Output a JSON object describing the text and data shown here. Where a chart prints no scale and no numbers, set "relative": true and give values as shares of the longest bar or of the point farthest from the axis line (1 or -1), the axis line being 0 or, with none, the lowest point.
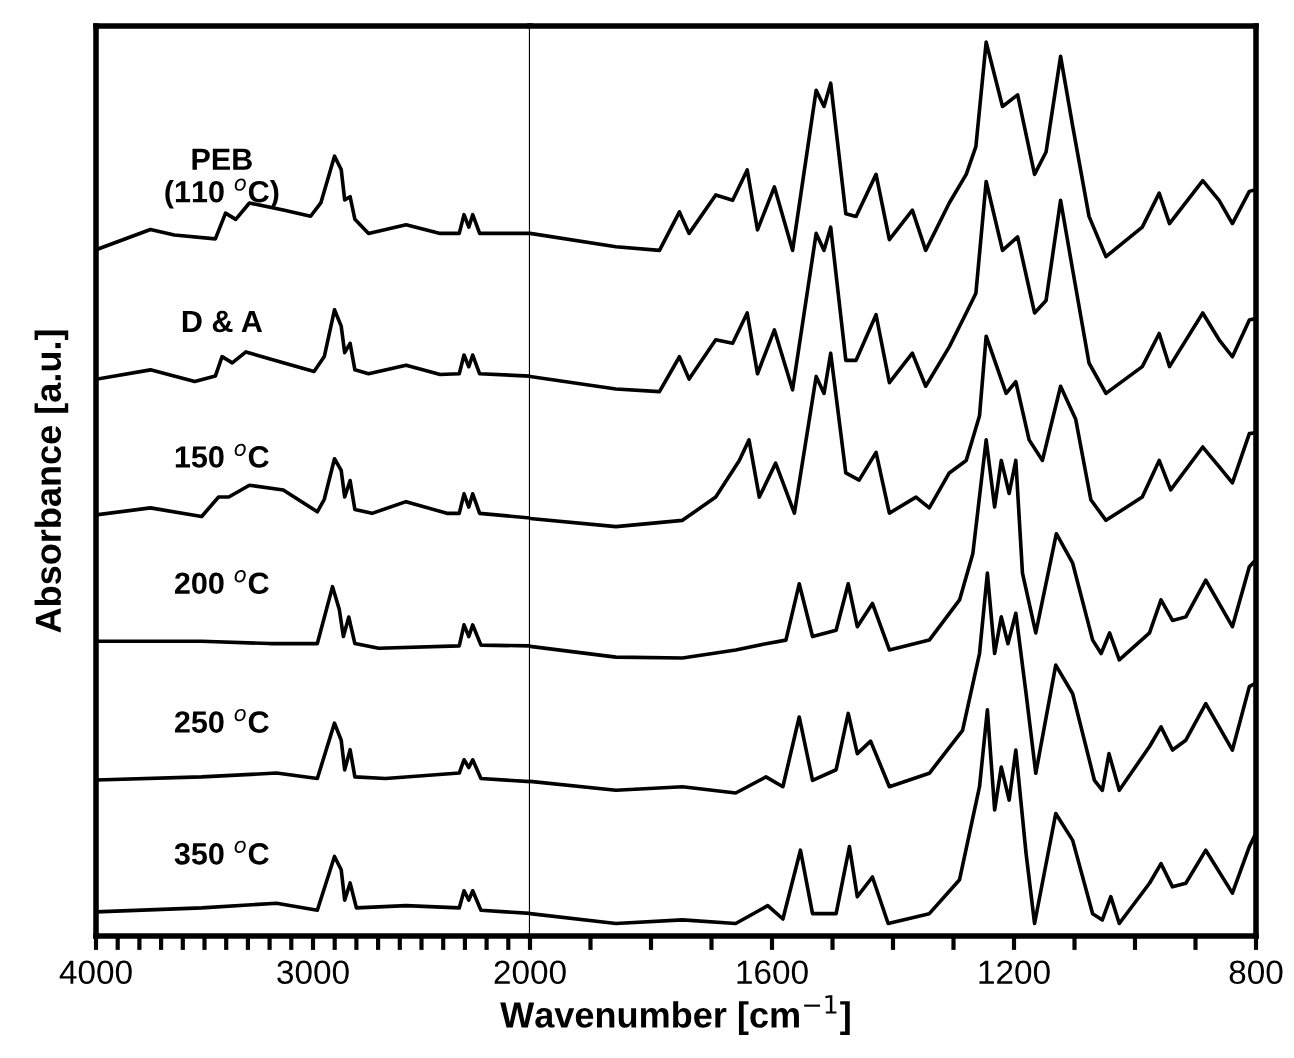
{
  "chart_data": [
    {
      "type": "line",
      "relative": true,
      "ylabel": "Absorbance [a.u.]",
      "xlim": [
        4000,
        2000
      ],
      "xticks": [
        4000,
        {
          "value": 3900,
          "label": null
        },
        {
          "value": 3800,
          "label": null
        },
        {
          "value": 3700,
          "label": null
        },
        {
          "value": 3600,
          "label": null
        },
        {
          "value": 3500,
          "label": null
        },
        {
          "value": 3400,
          "label": null
        },
        {
          "value": 3300,
          "label": null
        },
        {
          "value": 3200,
          "label": null
        },
        {
          "value": 3100,
          "label": null
        },
        3000,
        {
          "value": 2900,
          "label": null
        },
        {
          "value": 2800,
          "label": null
        },
        {
          "value": 2700,
          "label": null
        },
        {
          "value": 2600,
          "label": null
        },
        {
          "value": 2500,
          "label": null
        },
        {
          "value": 2400,
          "label": null
        },
        {
          "value": 2300,
          "label": null
        },
        {
          "value": 2200,
          "label": null
        },
        {
          "value": 2100,
          "label": null
        },
        2000
      ],
      "tick_labels": "x",
      "grid": false,
      "legend": false,
      "marker": "none",
      "line_style": "solid",
      "series": [
        {
          "name": "PEB\n(110 $^{o}$C)",
          "color": "#000000",
          "x": [
            4000,
            3749,
            3639,
            3450,
            3403,
            3356,
            3293,
            3137,
            3011,
            2964,
            2901,
            2870,
            2854,
            2829,
            2807,
            2744,
            2571,
            2414,
            2326,
            2304,
            2282,
            2264,
            2232,
            2000
          ],
          "values": [
            0.88,
            0.906,
            0.899,
            0.894,
            0.927,
            0.919,
            0.94,
            0.931,
            0.923,
            0.94,
            1.0,
            0.983,
            0.944,
            0.948,
            0.919,
            0.901,
            0.912,
            0.901,
            0.901,
            0.925,
            0.909,
            0.925,
            0.901,
            0.901
          ]
        },
        {
          "name": "D & A",
          "color": "#000000",
          "x": [
            4000,
            3749,
            3545,
            3450,
            3419,
            3372,
            3309,
            3137,
            2995,
            2948,
            2901,
            2870,
            2854,
            2829,
            2807,
            2744,
            2571,
            2414,
            2326,
            2304,
            2282,
            2264,
            2232,
            2000
          ],
          "values": [
            0.714,
            0.726,
            0.711,
            0.718,
            0.743,
            0.735,
            0.749,
            0.735,
            0.724,
            0.743,
            0.803,
            0.782,
            0.748,
            0.76,
            0.726,
            0.721,
            0.732,
            0.72,
            0.721,
            0.745,
            0.73,
            0.745,
            0.721,
            0.718
          ]
        },
        {
          "name": "150 $^{o}$C",
          "color": "#000000",
          "x": [
            4000,
            3749,
            3513,
            3435,
            3388,
            3293,
            3137,
            2980,
            2948,
            2901,
            2870,
            2854,
            2829,
            2807,
            2728,
            2571,
            2383,
            2326,
            2304,
            2282,
            2264,
            2232,
            2000
          ],
          "values": [
            0.54,
            0.549,
            0.538,
            0.563,
            0.563,
            0.578,
            0.572,
            0.544,
            0.56,
            0.612,
            0.597,
            0.563,
            0.584,
            0.547,
            0.542,
            0.557,
            0.542,
            0.542,
            0.567,
            0.55,
            0.567,
            0.542,
            0.536
          ]
        },
        {
          "name": "200 $^{o}$C",
          "color": "#000000",
          "x": [
            4000,
            3513,
            3200,
            2980,
            2910,
            2879,
            2860,
            2835,
            2807,
            2697,
            2326,
            2304,
            2282,
            2264,
            2226,
            2000
          ],
          "values": [
            0.378,
            0.378,
            0.375,
            0.375,
            0.448,
            0.419,
            0.384,
            0.409,
            0.375,
            0.369,
            0.372,
            0.399,
            0.384,
            0.399,
            0.373,
            0.372
          ]
        },
        {
          "name": "250 $^{o}$C",
          "color": "#000000",
          "x": [
            4000,
            3513,
            3168,
            2980,
            2901,
            2870,
            2854,
            2829,
            2807,
            2666,
            2326,
            2304,
            2282,
            2264,
            2226,
            2000
          ],
          "values": [
            0.2,
            0.204,
            0.209,
            0.202,
            0.273,
            0.251,
            0.213,
            0.239,
            0.204,
            0.202,
            0.209,
            0.226,
            0.216,
            0.226,
            0.202,
            0.198
          ]
        },
        {
          "name": "350 $^{o}$C",
          "color": "#000000",
          "x": [
            4000,
            3513,
            3168,
            2980,
            2901,
            2870,
            2854,
            2829,
            2800,
            2571,
            2326,
            2304,
            2282,
            2264,
            2226,
            2000
          ],
          "values": [
            0.031,
            0.036,
            0.042,
            0.033,
            0.102,
            0.085,
            0.046,
            0.068,
            0.036,
            0.039,
            0.036,
            0.058,
            0.046,
            0.058,
            0.033,
            0.029
          ]
        }
      ]
    },
    {
      "type": "line",
      "relative": true,
      "xlabel": "Wavenumber [cm$^{−1}$]",
      "xlim": [
        2000,
        800
      ],
      "xticks": [
        {
          "value": 1900,
          "label": null
        },
        {
          "value": 1800,
          "label": null
        },
        {
          "value": 1700,
          "label": null
        },
        1600,
        {
          "value": 1500,
          "label": null
        },
        {
          "value": 1400,
          "label": null
        },
        {
          "value": 1300,
          "label": null
        },
        1200,
        {
          "value": 1100,
          "label": null
        },
        {
          "value": 1000,
          "label": null
        },
        {
          "value": 900,
          "label": null
        },
        800
      ],
      "tick_labels": "x",
      "grid": false,
      "legend": false,
      "marker": "none",
      "line_style": "solid",
      "series": [
        {
          "color": "#000000",
          "x": [
            2000,
            1858,
            1786,
            1753,
            1737,
            1693,
            1665,
            1641,
            1624,
            1596,
            1566,
            1527,
            1514,
            1503,
            1478,
            1461,
            1428,
            1406,
            1368,
            1346,
            1307,
            1279,
            1263,
            1246,
            1219,
            1194,
            1166,
            1147,
            1123,
            1103,
            1076,
            1048,
            988,
            960,
            943,
            888,
            861,
            839,
            811,
            800
          ],
          "values": [
            0.786,
            0.771,
            0.767,
            0.81,
            0.786,
            0.829,
            0.823,
            0.857,
            0.79,
            0.838,
            0.767,
            0.946,
            0.928,
            0.954,
            0.808,
            0.805,
            0.852,
            0.779,
            0.812,
            0.767,
            0.82,
            0.852,
            0.883,
            1.0,
            0.928,
            0.941,
            0.852,
            0.877,
            0.984,
            0.906,
            0.805,
            0.76,
            0.793,
            0.831,
            0.797,
            0.845,
            0.823,
            0.797,
            0.833,
            0.835
          ]
        },
        {
          "color": "#000000",
          "x": [
            2000,
            1858,
            1786,
            1753,
            1737,
            1693,
            1665,
            1641,
            1624,
            1596,
            1566,
            1527,
            1514,
            1503,
            1478,
            1461,
            1428,
            1406,
            1368,
            1346,
            1307,
            1279,
            1263,
            1246,
            1219,
            1194,
            1166,
            1147,
            1123,
            1103,
            1076,
            1048,
            988,
            960,
            943,
            888,
            861,
            839,
            811,
            800
          ],
          "values": [
            0.626,
            0.612,
            0.609,
            0.648,
            0.623,
            0.667,
            0.663,
            0.697,
            0.629,
            0.678,
            0.611,
            0.786,
            0.767,
            0.793,
            0.644,
            0.644,
            0.695,
            0.619,
            0.652,
            0.615,
            0.659,
            0.697,
            0.719,
            0.844,
            0.767,
            0.782,
            0.697,
            0.711,
            0.823,
            0.745,
            0.641,
            0.607,
            0.637,
            0.674,
            0.637,
            0.697,
            0.667,
            0.648,
            0.689,
            0.691
          ]
        },
        {
          "color": "#000000",
          "x": [
            2000,
            1858,
            1748,
            1693,
            1654,
            1638,
            1621,
            1594,
            1563,
            1527,
            1514,
            1503,
            1478,
            1456,
            1428,
            1406,
            1362,
            1340,
            1307,
            1279,
            1257,
            1246,
            1213,
            1197,
            1175,
            1153,
            1123,
            1098,
            1073,
            1048,
            988,
            960,
            941,
            888,
            861,
            839,
            811,
            800
          ],
          "values": [
            0.467,
            0.458,
            0.465,
            0.491,
            0.532,
            0.555,
            0.491,
            0.529,
            0.473,
            0.626,
            0.607,
            0.652,
            0.518,
            0.51,
            0.541,
            0.473,
            0.491,
            0.479,
            0.518,
            0.532,
            0.582,
            0.671,
            0.607,
            0.62,
            0.555,
            0.532,
            0.615,
            0.578,
            0.488,
            0.465,
            0.491,
            0.532,
            0.499,
            0.547,
            0.525,
            0.507,
            0.562,
            0.563
          ]
        },
        {
          "color": "#000000",
          "x": [
            2000,
            1858,
            1748,
            1660,
            1610,
            1577,
            1555,
            1533,
            1494,
            1474,
            1459,
            1434,
            1406,
            1340,
            1290,
            1268,
            1246,
            1232,
            1221,
            1208,
            1197,
            1186,
            1164,
            1130,
            1103,
            1070,
            1056,
            1042,
            1026,
            976,
            957,
            938,
            916,
            883,
            839,
            811,
            800
          ],
          "values": [
            0.324,
            0.312,
            0.311,
            0.32,
            0.327,
            0.331,
            0.394,
            0.335,
            0.342,
            0.394,
            0.346,
            0.372,
            0.32,
            0.331,
            0.376,
            0.428,
            0.555,
            0.48,
            0.532,
            0.495,
            0.532,
            0.406,
            0.339,
            0.45,
            0.417,
            0.331,
            0.316,
            0.339,
            0.309,
            0.339,
            0.376,
            0.353,
            0.357,
            0.398,
            0.346,
            0.413,
            0.421
          ]
        },
        {
          "color": "#000000",
          "x": [
            2000,
            1858,
            1748,
            1660,
            1610,
            1582,
            1555,
            1533,
            1494,
            1474,
            1459,
            1437,
            1406,
            1340,
            1285,
            1257,
            1244,
            1232,
            1221,
            1210,
            1197,
            1180,
            1164,
            1131,
            1103,
            1067,
            1054,
            1043,
            1026,
            976,
            957,
            938,
            916,
            883,
            839,
            811,
            800
          ],
          "values": [
            0.173,
            0.163,
            0.167,
            0.16,
            0.178,
            0.167,
            0.245,
            0.174,
            0.186,
            0.249,
            0.204,
            0.218,
            0.167,
            0.182,
            0.23,
            0.316,
            0.406,
            0.316,
            0.357,
            0.327,
            0.361,
            0.271,
            0.182,
            0.303,
            0.271,
            0.174,
            0.163,
            0.204,
            0.163,
            0.212,
            0.234,
            0.208,
            0.219,
            0.26,
            0.208,
            0.279,
            0.283
          ]
        },
        {
          "color": "#000000",
          "x": [
            2000,
            1858,
            1748,
            1660,
            1607,
            1582,
            1553,
            1533,
            1494,
            1472,
            1459,
            1434,
            1408,
            1340,
            1290,
            1257,
            1244,
            1232,
            1221,
            1208,
            1197,
            1180,
            1166,
            1131,
            1103,
            1070,
            1054,
            1040,
            1026,
            976,
            957,
            938,
            916,
            883,
            839,
            811,
            800
          ],
          "values": [
            0.025,
            0.014,
            0.018,
            0.014,
            0.034,
            0.019,
            0.096,
            0.025,
            0.025,
            0.1,
            0.044,
            0.066,
            0.014,
            0.025,
            0.063,
            0.167,
            0.253,
            0.141,
            0.189,
            0.152,
            0.208,
            0.092,
            0.014,
            0.137,
            0.107,
            0.025,
            0.018,
            0.044,
            0.014,
            0.059,
            0.081,
            0.055,
            0.059,
            0.096,
            0.048,
            0.1,
            0.115
          ]
        }
      ]
    }
  ]
}
